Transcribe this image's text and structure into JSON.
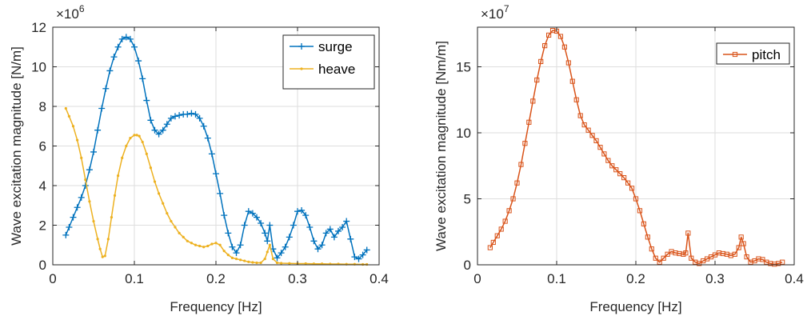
{
  "chart_data": [
    {
      "type": "line",
      "xlabel": "Frequency [Hz]",
      "ylabel": "Wave excitation magnitude [N/m]",
      "xlim": [
        0,
        0.4
      ],
      "ylim": [
        0,
        12
      ],
      "xticks": [
        0,
        0.1,
        0.2,
        0.3,
        0.4
      ],
      "xtick_labels": [
        "0",
        "0.1",
        "0.2",
        "0.3",
        "0.4"
      ],
      "yticks": [
        0,
        2,
        4,
        6,
        8,
        10,
        12
      ],
      "ytick_labels": [
        "0",
        "2",
        "4",
        "6",
        "8",
        "10",
        "12"
      ],
      "y_multiplier": {
        "base": "×10",
        "exponent": "6"
      },
      "grid": true,
      "legend_position": "top-right",
      "series": [
        {
          "name": "surge",
          "color": "#0072BD",
          "marker": "plus",
          "x": [
            0.016,
            0.02,
            0.025,
            0.03,
            0.035,
            0.04,
            0.045,
            0.05,
            0.055,
            0.06,
            0.065,
            0.07,
            0.075,
            0.08,
            0.085,
            0.09,
            0.095,
            0.1,
            0.105,
            0.11,
            0.115,
            0.12,
            0.125,
            0.13,
            0.135,
            0.14,
            0.145,
            0.15,
            0.155,
            0.16,
            0.165,
            0.17,
            0.175,
            0.18,
            0.185,
            0.19,
            0.195,
            0.2,
            0.205,
            0.21,
            0.215,
            0.22,
            0.225,
            0.23,
            0.235,
            0.24,
            0.245,
            0.25,
            0.255,
            0.26,
            0.263,
            0.266,
            0.27,
            0.275,
            0.28,
            0.285,
            0.29,
            0.295,
            0.3,
            0.305,
            0.31,
            0.315,
            0.32,
            0.325,
            0.33,
            0.335,
            0.34,
            0.345,
            0.35,
            0.355,
            0.36,
            0.365,
            0.37,
            0.375,
            0.38,
            0.385
          ],
          "y": [
            1.5,
            1.9,
            2.4,
            2.9,
            3.4,
            4.0,
            4.8,
            5.7,
            6.8,
            7.9,
            8.9,
            9.8,
            10.5,
            11.0,
            11.4,
            11.5,
            11.4,
            11.0,
            10.3,
            9.4,
            8.3,
            7.3,
            6.8,
            6.6,
            6.8,
            7.1,
            7.4,
            7.5,
            7.55,
            7.6,
            7.6,
            7.65,
            7.6,
            7.4,
            7.0,
            6.4,
            5.6,
            4.6,
            3.6,
            2.5,
            1.6,
            0.9,
            0.6,
            1.0,
            2.0,
            2.7,
            2.6,
            2.4,
            2.1,
            1.6,
            1.2,
            2.0,
            0.8,
            0.35,
            0.6,
            0.9,
            1.4,
            2.0,
            2.7,
            2.75,
            2.5,
            1.9,
            1.2,
            0.8,
            1.0,
            1.6,
            1.8,
            1.4,
            1.7,
            1.9,
            2.2,
            1.3,
            0.4,
            0.3,
            0.5,
            0.75
          ]
        },
        {
          "name": "heave",
          "color": "#EDB120",
          "marker": "dot",
          "x": [
            0.016,
            0.02,
            0.025,
            0.03,
            0.035,
            0.04,
            0.045,
            0.05,
            0.055,
            0.058,
            0.061,
            0.064,
            0.068,
            0.072,
            0.076,
            0.08,
            0.085,
            0.09,
            0.095,
            0.1,
            0.103,
            0.106,
            0.11,
            0.115,
            0.12,
            0.125,
            0.13,
            0.135,
            0.14,
            0.145,
            0.15,
            0.155,
            0.16,
            0.165,
            0.17,
            0.175,
            0.18,
            0.185,
            0.19,
            0.195,
            0.2,
            0.205,
            0.21,
            0.215,
            0.22,
            0.225,
            0.23,
            0.235,
            0.24,
            0.245,
            0.25,
            0.255,
            0.26,
            0.263,
            0.266,
            0.27,
            0.275,
            0.28,
            0.29,
            0.3,
            0.31,
            0.32,
            0.33,
            0.34,
            0.35,
            0.36,
            0.37,
            0.38,
            0.385
          ],
          "y": [
            7.9,
            7.5,
            7.0,
            6.3,
            5.4,
            4.3,
            3.2,
            2.2,
            1.3,
            0.8,
            0.4,
            0.45,
            1.3,
            2.4,
            3.5,
            4.5,
            5.4,
            6.0,
            6.4,
            6.55,
            6.55,
            6.5,
            6.2,
            5.6,
            4.9,
            4.2,
            3.6,
            3.1,
            2.6,
            2.2,
            1.9,
            1.6,
            1.4,
            1.2,
            1.1,
            1.0,
            0.95,
            0.9,
            0.95,
            1.05,
            1.1,
            1.0,
            0.7,
            0.5,
            0.35,
            0.3,
            0.25,
            0.2,
            0.15,
            0.12,
            0.1,
            0.1,
            0.3,
            0.65,
            1.0,
            0.3,
            0.1,
            0.08,
            0.07,
            0.06,
            0.06,
            0.05,
            0.05,
            0.04,
            0.04,
            0.03,
            0.03,
            0.02,
            0.02
          ]
        }
      ]
    },
    {
      "type": "line",
      "xlabel": "Frequency [Hz]",
      "ylabel": "Wave excitation magnitude [Nm/m]",
      "xlim": [
        0,
        0.4
      ],
      "ylim": [
        0,
        18
      ],
      "xticks": [
        0,
        0.1,
        0.2,
        0.3,
        0.4
      ],
      "xtick_labels": [
        "0",
        "0.1",
        "0.2",
        "0.3",
        "0.4"
      ],
      "yticks": [
        0,
        5,
        10,
        15
      ],
      "ytick_labels": [
        "0",
        "5",
        "10",
        "15"
      ],
      "y_multiplier": {
        "base": "×10",
        "exponent": "7"
      },
      "grid": true,
      "legend_position": "top-right",
      "series": [
        {
          "name": "pitch",
          "color": "#D95319",
          "marker": "square",
          "x": [
            0.016,
            0.02,
            0.025,
            0.03,
            0.035,
            0.04,
            0.045,
            0.05,
            0.055,
            0.06,
            0.065,
            0.07,
            0.075,
            0.08,
            0.085,
            0.09,
            0.095,
            0.1,
            0.105,
            0.11,
            0.115,
            0.12,
            0.125,
            0.13,
            0.135,
            0.14,
            0.145,
            0.15,
            0.155,
            0.16,
            0.165,
            0.17,
            0.175,
            0.18,
            0.185,
            0.19,
            0.195,
            0.2,
            0.205,
            0.21,
            0.215,
            0.22,
            0.225,
            0.23,
            0.235,
            0.24,
            0.245,
            0.25,
            0.255,
            0.26,
            0.263,
            0.266,
            0.27,
            0.275,
            0.28,
            0.285,
            0.29,
            0.295,
            0.3,
            0.305,
            0.31,
            0.315,
            0.32,
            0.325,
            0.33,
            0.333,
            0.336,
            0.34,
            0.345,
            0.35,
            0.355,
            0.36,
            0.365,
            0.37,
            0.375,
            0.38,
            0.385
          ],
          "y": [
            1.3,
            1.7,
            2.2,
            2.7,
            3.3,
            4.1,
            5.0,
            6.2,
            7.6,
            9.2,
            10.8,
            12.4,
            14.0,
            15.4,
            16.6,
            17.4,
            17.75,
            17.7,
            17.3,
            16.5,
            15.3,
            13.9,
            12.5,
            11.3,
            10.6,
            10.2,
            9.8,
            9.4,
            8.9,
            8.4,
            7.9,
            7.5,
            7.2,
            6.9,
            6.6,
            6.2,
            5.8,
            5.0,
            4.1,
            3.1,
            2.1,
            1.2,
            0.5,
            0.2,
            0.5,
            0.8,
            1.0,
            0.9,
            0.85,
            0.8,
            0.9,
            2.4,
            0.5,
            0.2,
            0.1,
            0.3,
            0.45,
            0.6,
            0.75,
            0.9,
            0.85,
            0.8,
            0.7,
            0.8,
            1.3,
            2.1,
            1.6,
            0.6,
            0.2,
            0.3,
            0.45,
            0.4,
            0.2,
            0.1,
            0.05,
            0.1,
            0.2
          ]
        }
      ]
    }
  ]
}
